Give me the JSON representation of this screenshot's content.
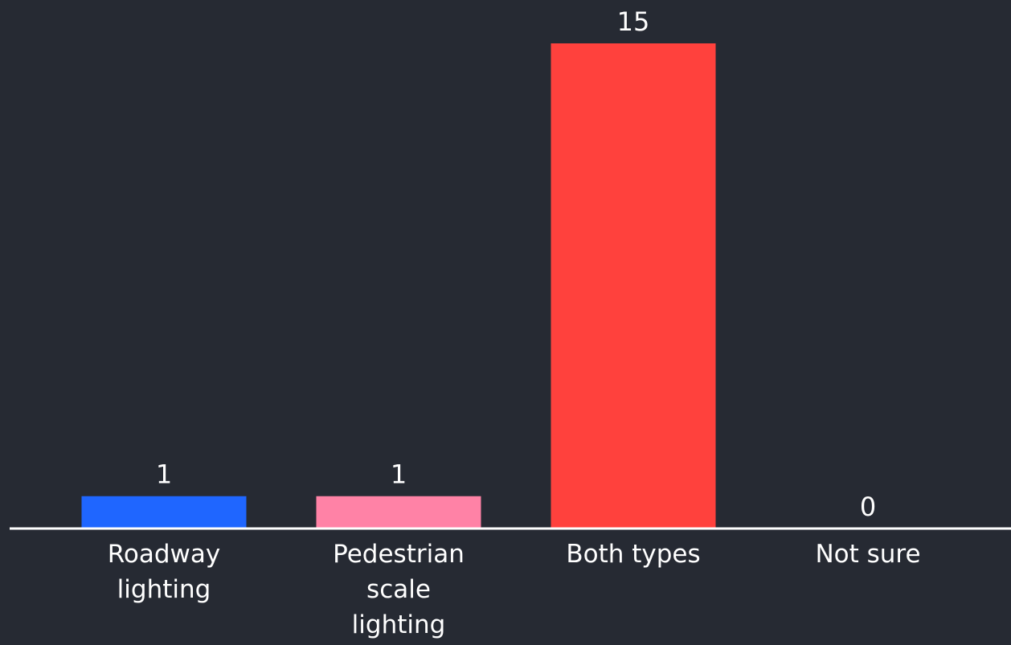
{
  "chart_data": {
    "type": "bar",
    "categories": [
      [
        "Roadway",
        "lighting"
      ],
      [
        "Pedestrian",
        "scale",
        "lighting"
      ],
      [
        "Both types"
      ],
      [
        "Not sure"
      ]
    ],
    "values": [
      1,
      1,
      15,
      0
    ],
    "value_labels": [
      "1",
      "1",
      "15",
      "0"
    ],
    "colors": [
      "#1f66ff",
      "#ff82a6",
      "#ff413d",
      "#7a7a7a"
    ],
    "axis_color": "#ffffff",
    "background": "#262a33",
    "title": "",
    "xlabel": "",
    "ylabel": "",
    "ylim": [
      0,
      15
    ]
  }
}
